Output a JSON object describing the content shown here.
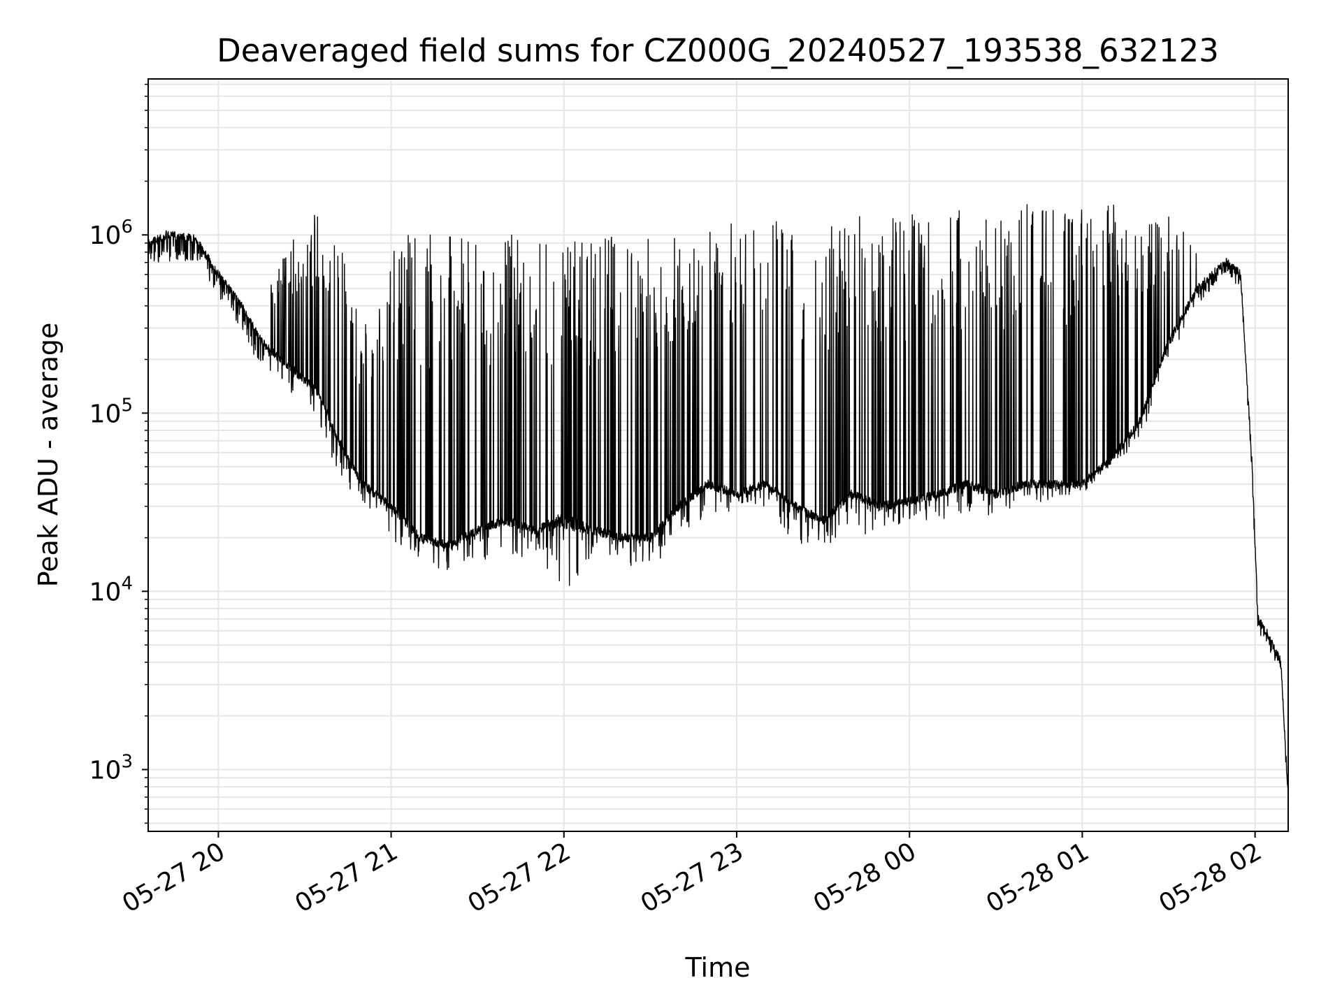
{
  "chart_data": {
    "type": "line",
    "title": "Deaveraged field sums for CZ000G_20240527_193538_632123",
    "xlabel": "Time",
    "ylabel": "Peak ADU - average",
    "x_scale": "time",
    "y_scale": "log",
    "xlim": [
      "2024-05-27 19:35:38",
      "2024-05-28 02:11:30"
    ],
    "ylim": [
      450,
      7500000
    ],
    "grid": true,
    "legend": "none",
    "line_color": "#000000",
    "grid_color": "#e6e6e6",
    "x_ticks": [
      {
        "t": "2024-05-27 20:00",
        "label": "05-27 20"
      },
      {
        "t": "2024-05-27 21:00",
        "label": "05-27 21"
      },
      {
        "t": "2024-05-27 22:00",
        "label": "05-27 22"
      },
      {
        "t": "2024-05-27 23:00",
        "label": "05-27 23"
      },
      {
        "t": "2024-05-28 00:00",
        "label": "05-28 00"
      },
      {
        "t": "2024-05-28 01:00",
        "label": "05-28 01"
      },
      {
        "t": "2024-05-28 02:00",
        "label": "05-28 02"
      }
    ],
    "y_ticks": [
      {
        "value": 1000,
        "base": "10",
        "exp": "3"
      },
      {
        "value": 10000,
        "base": "10",
        "exp": "4"
      },
      {
        "value": 100000,
        "base": "10",
        "exp": "5"
      },
      {
        "value": 1000000,
        "base": "10",
        "exp": "6"
      }
    ],
    "series": [
      {
        "envelope": {
          "x": [
            "2024-05-27 19:35:38",
            "2024-05-27 19:42",
            "2024-05-27 19:52",
            "2024-05-27 20:00",
            "2024-05-27 20:08",
            "2024-05-27 20:15",
            "2024-05-27 20:25",
            "2024-05-27 20:35",
            "2024-05-27 20:40",
            "2024-05-27 20:50",
            "2024-05-27 21:00",
            "2024-05-27 21:10",
            "2024-05-27 21:20",
            "2024-05-27 21:30",
            "2024-05-27 21:40",
            "2024-05-27 21:50",
            "2024-05-27 22:00",
            "2024-05-27 22:10",
            "2024-05-27 22:20",
            "2024-05-27 22:30",
            "2024-05-27 22:40",
            "2024-05-27 22:50",
            "2024-05-27 23:00",
            "2024-05-27 23:10",
            "2024-05-27 23:20",
            "2024-05-27 23:30",
            "2024-05-27 23:40",
            "2024-05-27 23:50",
            "2024-05-28 00:00",
            "2024-05-28 00:10",
            "2024-05-28 00:20",
            "2024-05-28 00:30",
            "2024-05-28 00:40",
            "2024-05-28 00:50",
            "2024-05-28 01:00",
            "2024-05-28 01:10",
            "2024-05-28 01:20",
            "2024-05-28 01:30",
            "2024-05-28 01:40",
            "2024-05-28 01:45",
            "2024-05-28 01:50",
            "2024-05-28 01:55",
            "2024-05-28 01:59",
            "2024-05-28 02:01",
            "2024-05-28 02:05",
            "2024-05-28 02:09",
            "2024-05-28 02:11:30"
          ],
          "y_base": [
            900000,
            1000000,
            950000,
            600000,
            400000,
            250000,
            180000,
            130000,
            80000,
            40000,
            30000,
            20000,
            18000,
            22000,
            25000,
            22000,
            25000,
            22000,
            20000,
            20000,
            30000,
            40000,
            35000,
            40000,
            30000,
            25000,
            35000,
            30000,
            32000,
            35000,
            40000,
            35000,
            40000,
            40000,
            40000,
            55000,
            90000,
            250000,
            500000,
            600000,
            700000,
            600000,
            50000,
            7000,
            5500,
            4000,
            700
          ],
          "y_upper": [
            1400000,
            1300000,
            1200000,
            700000,
            500000,
            400000,
            1000000,
            1400000,
            1400000,
            300000,
            1000000,
            1000000,
            1000000,
            1000000,
            1000000,
            1000000,
            1000000,
            1000000,
            1000000,
            1000000,
            1100000,
            1200000,
            1250000,
            1250000,
            1250000,
            1250000,
            1300000,
            1300000,
            1350000,
            1400000,
            1400000,
            1500000,
            1500000,
            1600000,
            1500000,
            1500000,
            1500000,
            1300000,
            1000000,
            900000,
            800000,
            700000,
            60000,
            8000,
            6000,
            4500,
            800
          ],
          "y_lower": [
            700000,
            700000,
            700000,
            450000,
            300000,
            170000,
            120000,
            90000,
            50000,
            30000,
            20000,
            14000,
            13000,
            15000,
            15000,
            15000,
            10000,
            14000,
            14000,
            13000,
            20000,
            25000,
            28000,
            30000,
            18000,
            18000,
            20000,
            22000,
            25000,
            25000,
            28000,
            26000,
            30000,
            32000,
            35000,
            50000,
            70000,
            200000,
            400000,
            500000,
            600000,
            500000,
            40000,
            6000,
            4500,
            3500,
            600
          ]
        }
      }
    ]
  }
}
